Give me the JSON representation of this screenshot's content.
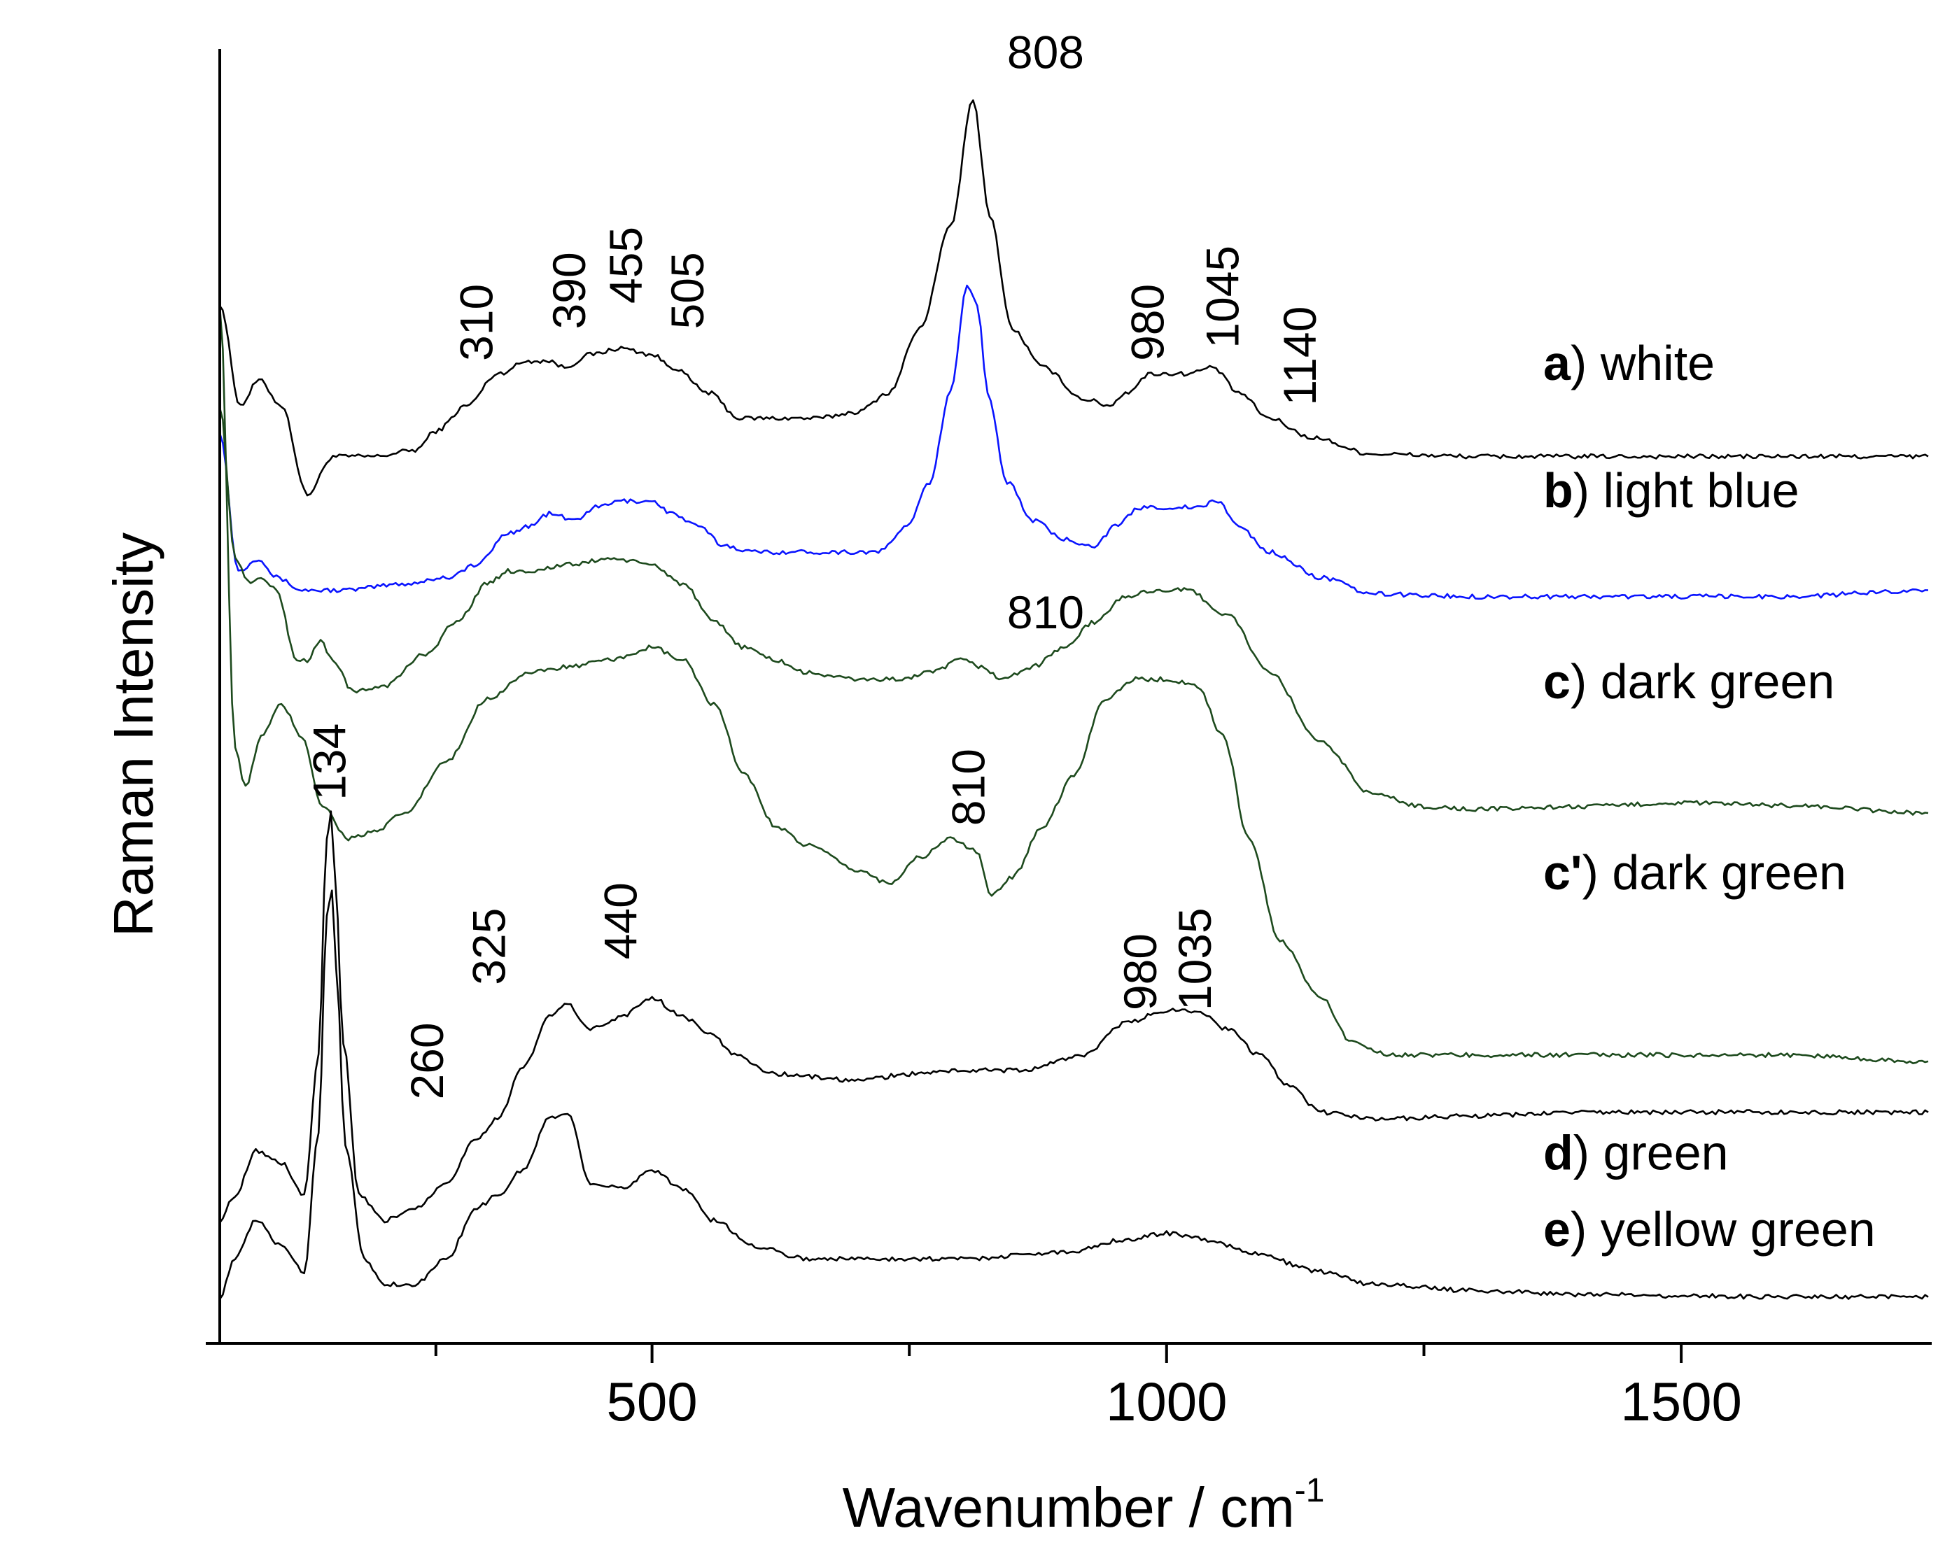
{
  "chart_data": {
    "type": "line",
    "title": "",
    "xlabel": "Wavenumber  /  cm",
    "xlabel_superscript": "-1",
    "ylabel": "Raman  Intensity",
    "xlim": [
      80,
      1740
    ],
    "ylim": [
      0,
      100
    ],
    "x_ticks_major": [
      500,
      1000,
      1500
    ],
    "x_ticks_minor": [
      290,
      750,
      1250
    ],
    "x_tick_labels": [
      "500",
      "1000",
      "1500"
    ],
    "grid": false,
    "series": [
      {
        "id": "a",
        "letter": "a",
        "name": ")  white",
        "color": "#000000",
        "points": [
          [
            80,
            80
          ],
          [
            100,
            72
          ],
          [
            118,
            74
          ],
          [
            140,
            72
          ],
          [
            165,
            65
          ],
          [
            190,
            68
          ],
          [
            230,
            68
          ],
          [
            270,
            68.5
          ],
          [
            290,
            70
          ],
          [
            320,
            72
          ],
          [
            350,
            74.5
          ],
          [
            380,
            75.5
          ],
          [
            400,
            75.5
          ],
          [
            415,
            75
          ],
          [
            440,
            76
          ],
          [
            470,
            76.5
          ],
          [
            500,
            76
          ],
          [
            520,
            75
          ],
          [
            555,
            73
          ],
          [
            585,
            71
          ],
          [
            620,
            71
          ],
          [
            660,
            71
          ],
          [
            700,
            71.5
          ],
          [
            730,
            73
          ],
          [
            760,
            78
          ],
          [
            790,
            86
          ],
          [
            812,
            96
          ],
          [
            828,
            87
          ],
          [
            850,
            78
          ],
          [
            880,
            75
          ],
          [
            920,
            72.5
          ],
          [
            945,
            72
          ],
          [
            960,
            73
          ],
          [
            985,
            74.5
          ],
          [
            1020,
            74.5
          ],
          [
            1045,
            75
          ],
          [
            1070,
            73
          ],
          [
            1100,
            71
          ],
          [
            1140,
            69.5
          ],
          [
            1200,
            68.2
          ],
          [
            1300,
            68
          ],
          [
            1400,
            68
          ],
          [
            1500,
            68
          ],
          [
            1600,
            68
          ],
          [
            1740,
            68
          ]
        ]
      },
      {
        "id": "b",
        "letter": "b",
        "name": ") light blue",
        "color": "#0a14ff",
        "points": [
          [
            80,
            70
          ],
          [
            98,
            59
          ],
          [
            118,
            60
          ],
          [
            135,
            58.5
          ],
          [
            160,
            57.5
          ],
          [
            200,
            57.5
          ],
          [
            260,
            58
          ],
          [
            300,
            58.5
          ],
          [
            330,
            59.5
          ],
          [
            360,
            62
          ],
          [
            380,
            62.5
          ],
          [
            400,
            63.5
          ],
          [
            425,
            63
          ],
          [
            445,
            64
          ],
          [
            470,
            64.5
          ],
          [
            500,
            64.5
          ],
          [
            520,
            63.5
          ],
          [
            545,
            62.5
          ],
          [
            570,
            61
          ],
          [
            600,
            60.5
          ],
          [
            660,
            60.5
          ],
          [
            720,
            60.5
          ],
          [
            748,
            62.5
          ],
          [
            770,
            66
          ],
          [
            790,
            73
          ],
          [
            806,
            81.5
          ],
          [
            816,
            80
          ],
          [
            826,
            73
          ],
          [
            845,
            66
          ],
          [
            870,
            63
          ],
          [
            900,
            61.5
          ],
          [
            930,
            61
          ],
          [
            950,
            62.5
          ],
          [
            975,
            64
          ],
          [
            1000,
            64
          ],
          [
            1030,
            64
          ],
          [
            1050,
            64.5
          ],
          [
            1070,
            62.5
          ],
          [
            1100,
            60.5
          ],
          [
            1150,
            58.5
          ],
          [
            1200,
            57.2
          ],
          [
            1300,
            57
          ],
          [
            1400,
            57
          ],
          [
            1500,
            57
          ],
          [
            1600,
            57
          ],
          [
            1740,
            57.5
          ]
        ]
      },
      {
        "id": "c",
        "letter": "c",
        "name": ") dark green",
        "color": "#1d4a1d",
        "points": [
          [
            80,
            72
          ],
          [
            95,
            60
          ],
          [
            110,
            58
          ],
          [
            120,
            58.5
          ],
          [
            135,
            57.5
          ],
          [
            155,
            52
          ],
          [
            165,
            52
          ],
          [
            178,
            53.5
          ],
          [
            190,
            52
          ],
          [
            210,
            49.5
          ],
          [
            240,
            50
          ],
          [
            280,
            52.5
          ],
          [
            310,
            55
          ],
          [
            340,
            58
          ],
          [
            360,
            59
          ],
          [
            380,
            59
          ],
          [
            420,
            59.5
          ],
          [
            460,
            60
          ],
          [
            500,
            59.5
          ],
          [
            530,
            58
          ],
          [
            560,
            55
          ],
          [
            590,
            53
          ],
          [
            620,
            52
          ],
          [
            650,
            51
          ],
          [
            700,
            50.5
          ],
          [
            740,
            50.5
          ],
          [
            770,
            51
          ],
          [
            800,
            52
          ],
          [
            820,
            51.5
          ],
          [
            840,
            50.5
          ],
          [
            870,
            51.5
          ],
          [
            900,
            53
          ],
          [
            930,
            55
          ],
          [
            960,
            57
          ],
          [
            990,
            57.5
          ],
          [
            1020,
            57.5
          ],
          [
            1060,
            55.5
          ],
          [
            1100,
            51
          ],
          [
            1150,
            45.5
          ],
          [
            1200,
            41.5
          ],
          [
            1250,
            40.5
          ],
          [
            1300,
            40.3
          ],
          [
            1400,
            40.5
          ],
          [
            1500,
            40.8
          ],
          [
            1600,
            40.6
          ],
          [
            1740,
            40
          ]
        ]
      },
      {
        "id": "cp",
        "letter": "c'",
        "name": ")  dark green",
        "color": "#1d4a1d",
        "points": [
          [
            80,
            80
          ],
          [
            95,
            45
          ],
          [
            105,
            42
          ],
          [
            120,
            46
          ],
          [
            140,
            48.5
          ],
          [
            160,
            46
          ],
          [
            180,
            40.5
          ],
          [
            205,
            38
          ],
          [
            230,
            38.5
          ],
          [
            260,
            40
          ],
          [
            300,
            44
          ],
          [
            340,
            49
          ],
          [
            380,
            51
          ],
          [
            420,
            51.5
          ],
          [
            460,
            52
          ],
          [
            500,
            53
          ],
          [
            530,
            52
          ],
          [
            560,
            48.5
          ],
          [
            590,
            43
          ],
          [
            620,
            39
          ],
          [
            650,
            37.5
          ],
          [
            700,
            35.5
          ],
          [
            730,
            34.5
          ],
          [
            760,
            36.5
          ],
          [
            790,
            38
          ],
          [
            815,
            37
          ],
          [
            830,
            33.5
          ],
          [
            850,
            35
          ],
          [
            880,
            39
          ],
          [
            910,
            43
          ],
          [
            940,
            49
          ],
          [
            970,
            50.5
          ],
          [
            1000,
            50.5
          ],
          [
            1030,
            50
          ],
          [
            1055,
            46
          ],
          [
            1080,
            38
          ],
          [
            1110,
            30
          ],
          [
            1150,
            25.5
          ],
          [
            1180,
            22
          ],
          [
            1220,
            21
          ],
          [
            1300,
            21
          ],
          [
            1400,
            21
          ],
          [
            1500,
            21
          ],
          [
            1600,
            21
          ],
          [
            1740,
            20.5
          ]
        ]
      },
      {
        "id": "d",
        "letter": "d",
        "name": ")  green",
        "color": "#000000",
        "points": [
          [
            80,
            8
          ],
          [
            95,
            10
          ],
          [
            115,
            13.5
          ],
          [
            140,
            12.5
          ],
          [
            162,
            10
          ],
          [
            176,
            21
          ],
          [
            184,
            38
          ],
          [
            188,
            40
          ],
          [
            192,
            35
          ],
          [
            200,
            22
          ],
          [
            215,
            10
          ],
          [
            240,
            8
          ],
          [
            270,
            9
          ],
          [
            300,
            11
          ],
          [
            330,
            14.5
          ],
          [
            350,
            16
          ],
          [
            375,
            20
          ],
          [
            400,
            24
          ],
          [
            418,
            25
          ],
          [
            440,
            23
          ],
          [
            470,
            24
          ],
          [
            500,
            25.5
          ],
          [
            530,
            24
          ],
          [
            560,
            22.5
          ],
          [
            580,
            21
          ],
          [
            620,
            19.5
          ],
          [
            700,
            19
          ],
          [
            750,
            19.5
          ],
          [
            800,
            19.8
          ],
          [
            860,
            19.8
          ],
          [
            920,
            21
          ],
          [
            960,
            23.5
          ],
          [
            1000,
            24.5
          ],
          [
            1030,
            24.5
          ],
          [
            1060,
            23
          ],
          [
            1090,
            21
          ],
          [
            1120,
            18.5
          ],
          [
            1150,
            16.5
          ],
          [
            1200,
            16
          ],
          [
            1300,
            16.2
          ],
          [
            1400,
            16.5
          ],
          [
            1500,
            16.5
          ],
          [
            1600,
            16.5
          ],
          [
            1740,
            16.5
          ]
        ]
      },
      {
        "id": "e",
        "letter": "e",
        "name": ") yellow green",
        "color": "#000000",
        "points": [
          [
            80,
            2
          ],
          [
            95,
            5
          ],
          [
            115,
            8
          ],
          [
            140,
            6
          ],
          [
            162,
            4
          ],
          [
            176,
            15
          ],
          [
            184,
            32
          ],
          [
            189,
            34
          ],
          [
            193,
            28
          ],
          [
            202,
            14
          ],
          [
            220,
            5
          ],
          [
            240,
            3
          ],
          [
            270,
            3
          ],
          [
            300,
            5
          ],
          [
            330,
            9
          ],
          [
            350,
            10
          ],
          [
            375,
            12
          ],
          [
            400,
            16
          ],
          [
            418,
            16.5
          ],
          [
            440,
            11
          ],
          [
            470,
            10.5
          ],
          [
            500,
            12
          ],
          [
            530,
            10.5
          ],
          [
            560,
            8
          ],
          [
            600,
            6
          ],
          [
            650,
            5
          ],
          [
            700,
            5
          ],
          [
            800,
            5
          ],
          [
            900,
            5.5
          ],
          [
            960,
            6.5
          ],
          [
            1000,
            7
          ],
          [
            1040,
            6.5
          ],
          [
            1080,
            5.5
          ],
          [
            1150,
            4
          ],
          [
            1200,
            3
          ],
          [
            1300,
            2.5
          ],
          [
            1400,
            2.2
          ],
          [
            1500,
            2.1
          ],
          [
            1600,
            2
          ],
          [
            1740,
            2
          ]
        ]
      }
    ],
    "series_label_anchor_y": [
      {
        "id": "a",
        "y": 74
      },
      {
        "id": "b",
        "y": 64
      },
      {
        "id": "c",
        "y": 49
      },
      {
        "id": "cp",
        "y": 34
      },
      {
        "id": "d",
        "y": 12
      },
      {
        "id": "e",
        "y": 6
      }
    ],
    "peak_labels": [
      {
        "text": "808",
        "x": 845,
        "y": 98.5,
        "rotated": false
      },
      {
        "text": "310",
        "x": 330,
        "y": 75.5,
        "rotated": true
      },
      {
        "text": "390",
        "x": 420,
        "y": 78,
        "rotated": true
      },
      {
        "text": "455",
        "x": 475,
        "y": 80,
        "rotated": true
      },
      {
        "text": "505",
        "x": 535,
        "y": 78,
        "rotated": true
      },
      {
        "text": "980",
        "x": 982,
        "y": 75.5,
        "rotated": true
      },
      {
        "text": "1045",
        "x": 1055,
        "y": 76.5,
        "rotated": true
      },
      {
        "text": "1140",
        "x": 1130,
        "y": 72,
        "rotated": true
      },
      {
        "text": "810",
        "x": 845,
        "y": 54.5,
        "rotated": false
      },
      {
        "text": "810",
        "x": 808,
        "y": 39,
        "rotated": true
      },
      {
        "text": "134",
        "x": 187,
        "y": 41,
        "rotated": true
      },
      {
        "text": "325",
        "x": 342,
        "y": 26.5,
        "rotated": true
      },
      {
        "text": "440",
        "x": 470,
        "y": 28.5,
        "rotated": true
      },
      {
        "text": "260",
        "x": 282,
        "y": 17.5,
        "rotated": true
      },
      {
        "text": "980",
        "x": 975,
        "y": 24.5,
        "rotated": true
      },
      {
        "text": "1035",
        "x": 1028,
        "y": 24.5,
        "rotated": true
      }
    ]
  }
}
